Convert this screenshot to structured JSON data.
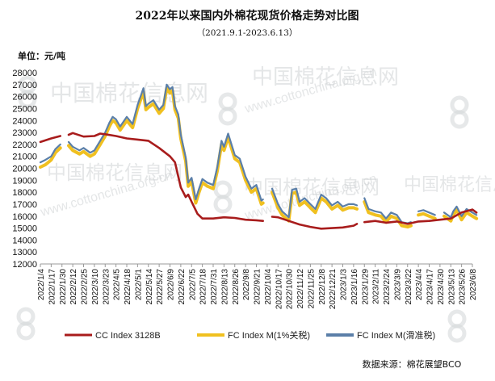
{
  "chart_data": {
    "type": "line",
    "title": "2022年以来国内外棉花现货价格走势对比图",
    "subtitle": "（2021.9.1-2023.6.13）",
    "ylabel": "单位：元/吨",
    "ylim": [
      12000,
      28000
    ],
    "ytick_step": 1000,
    "x_tick_labels": [
      "2022/1/4",
      "2022/1/17",
      "2022/1/30",
      "2022/2/12",
      "2022/2/25",
      "2022/3/10",
      "2022/3/23",
      "2022/4/5",
      "2022/4/18",
      "2022/5/1",
      "2022/5/14",
      "2022/5/27",
      "2022/6/9",
      "2022/6/22",
      "2022/7/5",
      "2022/7/18",
      "2022/7/31",
      "2022/8/13",
      "2022/8/26",
      "2022/9/8",
      "2022/9/21",
      "2022/10/4",
      "2022/10/17",
      "2022/10/30",
      "2022/11/12",
      "2022/11/25",
      "2022/12/8",
      "2022/12/21",
      "2023/1/3",
      "2023/1/16",
      "2023/1/29",
      "2023/2/11",
      "2023/2/24",
      "2023/3/9",
      "2023/3/22",
      "2023/4/4",
      "2023/4/17",
      "2023/4/30",
      "2023/5/13",
      "2023/5/26",
      "2023/6/8"
    ],
    "grid": false,
    "legend_position": "bottom",
    "series": [
      {
        "name": "CC Index 3128B",
        "color": "#a81c1c",
        "points": [
          [
            "2022/1/4",
            22200
          ],
          [
            "2022/1/17",
            22500
          ],
          [
            "2022/1/28",
            22700
          ],
          [
            "2022/2/1",
            null
          ],
          [
            "2022/2/7",
            22800
          ],
          [
            "2022/2/12",
            22950
          ],
          [
            "2022/2/25",
            22650
          ],
          [
            "2022/3/10",
            22700
          ],
          [
            "2022/3/17",
            22900
          ],
          [
            "2022/3/23",
            22850
          ],
          [
            "2022/4/5",
            22700
          ],
          [
            "2022/4/18",
            22500
          ],
          [
            "2022/5/1",
            22400
          ],
          [
            "2022/5/14",
            22300
          ],
          [
            "2022/5/27",
            21700
          ],
          [
            "2022/6/9",
            21000
          ],
          [
            "2022/6/15",
            20500
          ],
          [
            "2022/6/22",
            18400
          ],
          [
            "2022/6/28",
            17600
          ],
          [
            "2022/7/1",
            17800
          ],
          [
            "2022/7/5",
            17200
          ],
          [
            "2022/7/12",
            16200
          ],
          [
            "2022/7/18",
            15800
          ],
          [
            "2022/7/31",
            15800
          ],
          [
            "2022/8/13",
            15900
          ],
          [
            "2022/8/26",
            15850
          ],
          [
            "2022/9/8",
            15700
          ],
          [
            "2022/9/21",
            15650
          ],
          [
            "2022/9/29",
            15600
          ],
          [
            "2022/10/4",
            null
          ],
          [
            "2022/10/10",
            15950
          ],
          [
            "2022/10/17",
            15900
          ],
          [
            "2022/10/30",
            15600
          ],
          [
            "2022/11/12",
            15300
          ],
          [
            "2022/11/25",
            15100
          ],
          [
            "2022/12/8",
            14950
          ],
          [
            "2022/12/21",
            15000
          ],
          [
            "2023/1/3",
            15050
          ],
          [
            "2023/1/16",
            15200
          ],
          [
            "2023/1/20",
            15350
          ],
          [
            "2023/1/26",
            null
          ],
          [
            "2023/1/29",
            15500
          ],
          [
            "2023/2/11",
            15600
          ],
          [
            "2023/2/24",
            15450
          ],
          [
            "2023/3/9",
            15550
          ],
          [
            "2023/3/22",
            15350
          ],
          [
            "2023/4/4",
            15550
          ],
          [
            "2023/4/17",
            15600
          ],
          [
            "2023/4/30",
            15700
          ],
          [
            "2023/5/13",
            15800
          ],
          [
            "2023/5/26",
            16300
          ],
          [
            "2023/6/8",
            16550
          ],
          [
            "2023/6/13",
            16300
          ]
        ]
      },
      {
        "name": "FC Index M(1%关税)",
        "color": "#f0c020",
        "points": [
          [
            "2022/1/4",
            20100
          ],
          [
            "2022/1/10",
            20300
          ],
          [
            "2022/1/17",
            20700
          ],
          [
            "2022/1/22",
            21300
          ],
          [
            "2022/1/28",
            21700
          ],
          [
            "2022/2/1",
            null
          ],
          [
            "2022/2/7",
            21900
          ],
          [
            "2022/2/12",
            21500
          ],
          [
            "2022/2/20",
            21200
          ],
          [
            "2022/2/25",
            21400
          ],
          [
            "2022/3/5",
            21000
          ],
          [
            "2022/3/10",
            21200
          ],
          [
            "2022/3/17",
            22000
          ],
          [
            "2022/3/23",
            22700
          ],
          [
            "2022/3/28",
            23500
          ],
          [
            "2022/4/1",
            24000
          ],
          [
            "2022/4/5",
            23800
          ],
          [
            "2022/4/10",
            23200
          ],
          [
            "2022/4/18",
            24000
          ],
          [
            "2022/4/25",
            23400
          ],
          [
            "2022/5/1",
            25000
          ],
          [
            "2022/5/8",
            26400
          ],
          [
            "2022/5/11",
            24900
          ],
          [
            "2022/5/14",
            25100
          ],
          [
            "2022/5/20",
            25400
          ],
          [
            "2022/5/27",
            24600
          ],
          [
            "2022/6/1",
            25000
          ],
          [
            "2022/6/5",
            26700
          ],
          [
            "2022/6/9",
            26300
          ],
          [
            "2022/6/12",
            26500
          ],
          [
            "2022/6/15",
            24900
          ],
          [
            "2022/6/19",
            24200
          ],
          [
            "2022/6/22",
            22500
          ],
          [
            "2022/6/28",
            20600
          ],
          [
            "2022/7/1",
            18500
          ],
          [
            "2022/7/5",
            18900
          ],
          [
            "2022/7/10",
            17100
          ],
          [
            "2022/7/14",
            18000
          ],
          [
            "2022/7/18",
            18800
          ],
          [
            "2022/7/24",
            18500
          ],
          [
            "2022/7/31",
            18300
          ],
          [
            "2022/8/5",
            19800
          ],
          [
            "2022/8/10",
            22000
          ],
          [
            "2022/8/13",
            21500
          ],
          [
            "2022/8/18",
            22600
          ],
          [
            "2022/8/26",
            20800
          ],
          [
            "2022/9/1",
            20500
          ],
          [
            "2022/9/8",
            19000
          ],
          [
            "2022/9/15",
            18000
          ],
          [
            "2022/9/21",
            18300
          ],
          [
            "2022/9/27",
            17000
          ],
          [
            "2022/9/29",
            17100
          ],
          [
            "2022/10/4",
            null
          ],
          [
            "2022/10/10",
            18000
          ],
          [
            "2022/10/17",
            16700
          ],
          [
            "2022/10/22",
            16100
          ],
          [
            "2022/10/30",
            15600
          ],
          [
            "2022/11/3",
            17900
          ],
          [
            "2022/11/8",
            18000
          ],
          [
            "2022/11/12",
            16900
          ],
          [
            "2022/11/18",
            17200
          ],
          [
            "2022/11/25",
            16700
          ],
          [
            "2022/12/1",
            16300
          ],
          [
            "2022/12/8",
            17500
          ],
          [
            "2022/12/14",
            17200
          ],
          [
            "2022/12/21",
            16600
          ],
          [
            "2022/12/28",
            16900
          ],
          [
            "2023/1/3",
            16500
          ],
          [
            "2023/1/10",
            16700
          ],
          [
            "2023/1/16",
            16700
          ],
          [
            "2023/1/20",
            16600
          ],
          [
            "2023/1/26",
            null
          ],
          [
            "2023/1/29",
            17200
          ],
          [
            "2023/2/3",
            16300
          ],
          [
            "2023/2/11",
            16100
          ],
          [
            "2023/2/18",
            16000
          ],
          [
            "2023/2/24",
            15500
          ],
          [
            "2023/3/2",
            16000
          ],
          [
            "2023/3/9",
            15800
          ],
          [
            "2023/3/15",
            15200
          ],
          [
            "2023/3/22",
            15100
          ],
          [
            "2023/3/26",
            15200
          ],
          [
            "2023/3/30",
            null
          ],
          [
            "2023/4/4",
            16100
          ],
          [
            "2023/4/10",
            16200
          ],
          [
            "2023/4/17",
            16000
          ],
          [
            "2023/4/24",
            15800
          ],
          [
            "2023/4/30",
            null
          ],
          [
            "2023/5/5",
            16000
          ],
          [
            "2023/5/13",
            15600
          ],
          [
            "2023/5/16",
            16100
          ],
          [
            "2023/5/20",
            16500
          ],
          [
            "2023/5/26",
            15700
          ],
          [
            "2023/6/1",
            16300
          ],
          [
            "2023/6/8",
            16000
          ],
          [
            "2023/6/13",
            15800
          ]
        ]
      },
      {
        "name": "FC Index M(滑准税)",
        "color": "#5b7fa8",
        "points": [
          [
            "2022/1/4",
            20500
          ],
          [
            "2022/1/10",
            20700
          ],
          [
            "2022/1/17",
            21000
          ],
          [
            "2022/1/22",
            21600
          ],
          [
            "2022/1/28",
            22000
          ],
          [
            "2022/2/1",
            null
          ],
          [
            "2022/2/7",
            22200
          ],
          [
            "2022/2/12",
            21800
          ],
          [
            "2022/2/20",
            21500
          ],
          [
            "2022/2/25",
            21700
          ],
          [
            "2022/3/5",
            21300
          ],
          [
            "2022/3/10",
            21500
          ],
          [
            "2022/3/17",
            22300
          ],
          [
            "2022/3/23",
            23000
          ],
          [
            "2022/3/28",
            23800
          ],
          [
            "2022/4/1",
            24300
          ],
          [
            "2022/4/5",
            24100
          ],
          [
            "2022/4/10",
            23500
          ],
          [
            "2022/4/18",
            24300
          ],
          [
            "2022/4/25",
            23700
          ],
          [
            "2022/5/1",
            25300
          ],
          [
            "2022/5/8",
            26700
          ],
          [
            "2022/5/11",
            25200
          ],
          [
            "2022/5/14",
            25400
          ],
          [
            "2022/5/20",
            25700
          ],
          [
            "2022/5/27",
            24900
          ],
          [
            "2022/6/1",
            25300
          ],
          [
            "2022/6/5",
            27000
          ],
          [
            "2022/6/9",
            26600
          ],
          [
            "2022/6/12",
            26800
          ],
          [
            "2022/6/15",
            25200
          ],
          [
            "2022/6/19",
            24500
          ],
          [
            "2022/6/22",
            22800
          ],
          [
            "2022/6/28",
            20900
          ],
          [
            "2022/7/1",
            18800
          ],
          [
            "2022/7/5",
            19200
          ],
          [
            "2022/7/10",
            17400
          ],
          [
            "2022/7/14",
            18300
          ],
          [
            "2022/7/18",
            19100
          ],
          [
            "2022/7/24",
            18800
          ],
          [
            "2022/7/31",
            18600
          ],
          [
            "2022/8/5",
            20100
          ],
          [
            "2022/8/10",
            22300
          ],
          [
            "2022/8/13",
            21800
          ],
          [
            "2022/8/18",
            22900
          ],
          [
            "2022/8/26",
            21100
          ],
          [
            "2022/9/1",
            20800
          ],
          [
            "2022/9/8",
            19300
          ],
          [
            "2022/9/15",
            18300
          ],
          [
            "2022/9/21",
            18600
          ],
          [
            "2022/9/27",
            17300
          ],
          [
            "2022/9/29",
            17400
          ],
          [
            "2022/10/4",
            null
          ],
          [
            "2022/10/10",
            18300
          ],
          [
            "2022/10/17",
            17000
          ],
          [
            "2022/10/22",
            16400
          ],
          [
            "2022/10/30",
            15900
          ],
          [
            "2022/11/3",
            18200
          ],
          [
            "2022/11/8",
            18300
          ],
          [
            "2022/11/12",
            17200
          ],
          [
            "2022/11/18",
            17500
          ],
          [
            "2022/11/25",
            17000
          ],
          [
            "2022/12/1",
            16600
          ],
          [
            "2022/12/8",
            17800
          ],
          [
            "2022/12/14",
            17500
          ],
          [
            "2022/12/21",
            16900
          ],
          [
            "2022/12/28",
            17200
          ],
          [
            "2023/1/3",
            16800
          ],
          [
            "2023/1/10",
            17000
          ],
          [
            "2023/1/16",
            17000
          ],
          [
            "2023/1/20",
            16900
          ],
          [
            "2023/1/26",
            null
          ],
          [
            "2023/1/29",
            17500
          ],
          [
            "2023/2/3",
            16600
          ],
          [
            "2023/2/11",
            16400
          ],
          [
            "2023/2/18",
            16300
          ],
          [
            "2023/2/24",
            15800
          ],
          [
            "2023/3/2",
            16300
          ],
          [
            "2023/3/9",
            16100
          ],
          [
            "2023/3/15",
            15500
          ],
          [
            "2023/3/22",
            15400
          ],
          [
            "2023/3/26",
            15500
          ],
          [
            "2023/3/30",
            null
          ],
          [
            "2023/4/4",
            16400
          ],
          [
            "2023/4/10",
            16500
          ],
          [
            "2023/4/17",
            16300
          ],
          [
            "2023/4/24",
            16100
          ],
          [
            "2023/4/30",
            null
          ],
          [
            "2023/5/5",
            16300
          ],
          [
            "2023/5/13",
            15900
          ],
          [
            "2023/5/16",
            16400
          ],
          [
            "2023/5/20",
            16800
          ],
          [
            "2023/5/26",
            16000
          ],
          [
            "2023/6/1",
            16600
          ],
          [
            "2023/6/8",
            16300
          ],
          [
            "2023/6/13",
            16100
          ]
        ]
      }
    ]
  },
  "source": "数据来源：棉花展望BCO",
  "watermark": {
    "brand": "中国棉花信息网",
    "url": "www.cottonchina.org.cn"
  }
}
